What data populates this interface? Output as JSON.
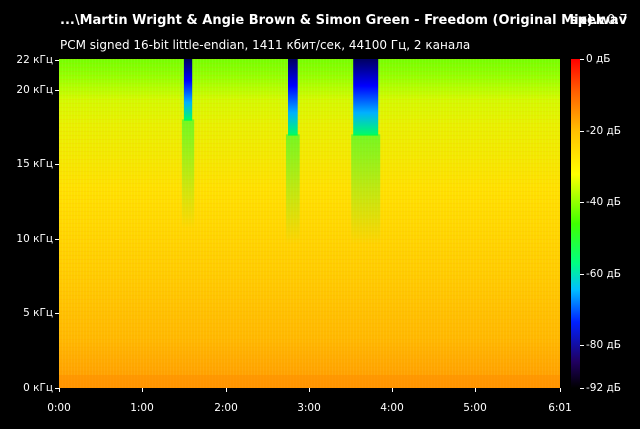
{
  "header": {
    "file_title": "...\\Martin Wright & Angie Brown & Simon Green - Freedom (Original Mix).wav",
    "app_name": "spek",
    "app_version": "0.7",
    "stream_info": "PCM signed 16-bit little-endian, 1411 кбит/сек, 44100 Гц, 2 канала"
  },
  "frequency_axis": {
    "unit": "кГц",
    "ticks": [
      {
        "value": 0,
        "label": "0 кГц"
      },
      {
        "value": 5,
        "label": "5 кГц"
      },
      {
        "value": 10,
        "label": "10 кГц"
      },
      {
        "value": 15,
        "label": "15 кГц"
      },
      {
        "value": 20,
        "label": "20 кГц"
      },
      {
        "value": 22,
        "label": "22 кГц"
      }
    ],
    "max": 22.05
  },
  "time_axis": {
    "ticks": [
      {
        "value": 0,
        "label": "0:00"
      },
      {
        "value": 60,
        "label": "1:00"
      },
      {
        "value": 120,
        "label": "2:00"
      },
      {
        "value": 180,
        "label": "3:00"
      },
      {
        "value": 240,
        "label": "4:00"
      },
      {
        "value": 300,
        "label": "5:00"
      },
      {
        "value": 361,
        "label": "6:01"
      }
    ],
    "duration_seconds": 361
  },
  "db_axis": {
    "ticks": [
      {
        "value": 0,
        "label": "0 дБ"
      },
      {
        "value": -20,
        "label": "-20 дБ"
      },
      {
        "value": -40,
        "label": "-40 дБ"
      },
      {
        "value": -60,
        "label": "-60 дБ"
      },
      {
        "value": -80,
        "label": "-80 дБ"
      },
      {
        "value": -92,
        "label": "-92 дБ"
      }
    ],
    "min": -92,
    "max": 0
  },
  "colormap": [
    "#ffffff",
    "#ff0000",
    "#ffff00",
    "#00ff00",
    "#00ffff",
    "#0000ff",
    "#000030"
  ],
  "quiet_bands": [
    {
      "start": 90,
      "end": 96,
      "top_khz": 22,
      "bottom_khz": 18
    },
    {
      "start": 165,
      "end": 172,
      "top_khz": 22,
      "bottom_khz": 17
    },
    {
      "start": 212,
      "end": 230,
      "top_khz": 22,
      "bottom_khz": 17
    }
  ]
}
